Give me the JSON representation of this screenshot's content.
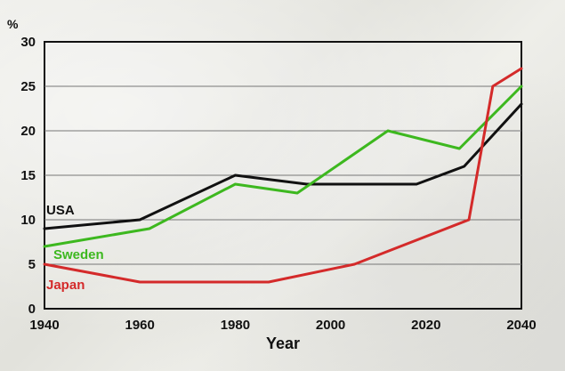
{
  "chart_data": {
    "type": "line",
    "xlabel": "Year",
    "ylabel": "%",
    "xlim": [
      1940,
      2040
    ],
    "ylim": [
      0,
      30
    ],
    "x_ticks": [
      1940,
      1960,
      1980,
      2000,
      2020,
      2040
    ],
    "y_ticks": [
      0,
      5,
      10,
      15,
      20,
      25,
      30
    ],
    "grid": true,
    "series": [
      {
        "name": "USA",
        "color": "#111111",
        "x": [
          1940,
          1960,
          1980,
          1995,
          2018,
          2028,
          2040
        ],
        "y": [
          9,
          10,
          15,
          14,
          14,
          16,
          23
        ]
      },
      {
        "name": "Sweden",
        "color": "#3db81f",
        "x": [
          1940,
          1962,
          1980,
          1993,
          2012,
          2027,
          2040
        ],
        "y": [
          7,
          9,
          14,
          13,
          20,
          18,
          25
        ]
      },
      {
        "name": "Japan",
        "color": "#d42a2a",
        "x": [
          1940,
          1960,
          1987,
          2005,
          2029,
          2034,
          2040
        ],
        "y": [
          5,
          3,
          3,
          5,
          10,
          25,
          27
        ]
      }
    ]
  }
}
